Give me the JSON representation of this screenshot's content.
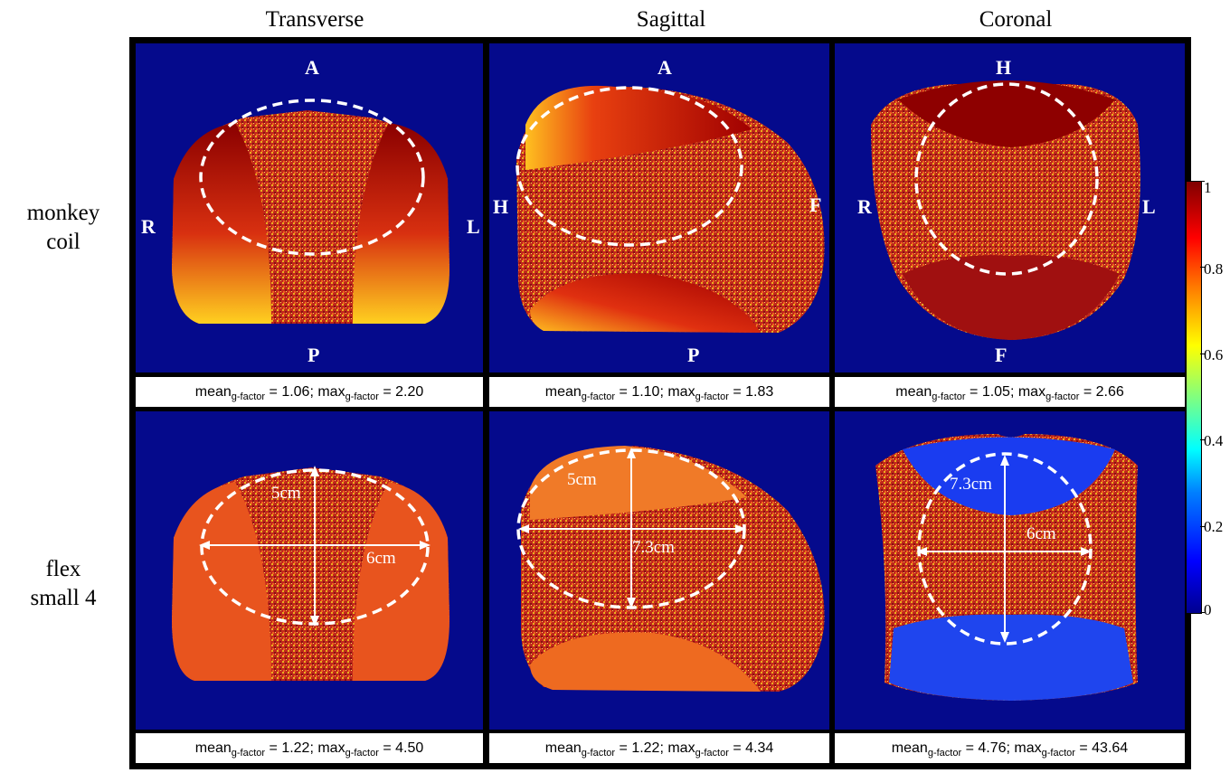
{
  "columns": [
    "Transverse",
    "Sagittal",
    "Coronal"
  ],
  "rows": [
    {
      "label_line1": "monkey",
      "label_line2": "coil"
    },
    {
      "label_line1": "flex",
      "label_line2": "small 4"
    }
  ],
  "panels": {
    "r0c0": {
      "orient": {
        "top": "A",
        "bottom": "P",
        "left": "R",
        "right": "L"
      },
      "mean": "1.06",
      "max": "2.20"
    },
    "r0c1": {
      "orient": {
        "top": "A",
        "bottom": "P",
        "left": "H",
        "right": "F"
      },
      "mean": "1.10",
      "max": "1.83"
    },
    "r0c2": {
      "orient": {
        "top": "H",
        "bottom": "F",
        "left": "R",
        "right": "L"
      },
      "mean": "1.05",
      "max": "2.66"
    },
    "r1c0": {
      "dims": {
        "vertical": "5cm",
        "horizontal": "6cm"
      },
      "mean": "1.22",
      "max": "4.50"
    },
    "r1c1": {
      "dims": {
        "vertical": "5cm",
        "horizontal": "7.3cm"
      },
      "mean": "1.22",
      "max": "4.34"
    },
    "r1c2": {
      "dims": {
        "vertical": "7.3cm",
        "horizontal": "6cm"
      },
      "mean": "4.76",
      "max": "43.64"
    }
  },
  "caption_text": {
    "mean": "mean",
    "max": "max",
    "sub": "g-factor",
    "sep": "; ",
    "eq": " = "
  },
  "colorbar": {
    "ticks": [
      "1",
      "0.8",
      "0.6",
      "0.4",
      "0.2",
      "0"
    ],
    "colormap": "jet",
    "min": 0,
    "max": 1
  },
  "colors": {
    "background": "#050a8c",
    "noise": "#c8281e",
    "dashed_roi": "#ffffff"
  }
}
